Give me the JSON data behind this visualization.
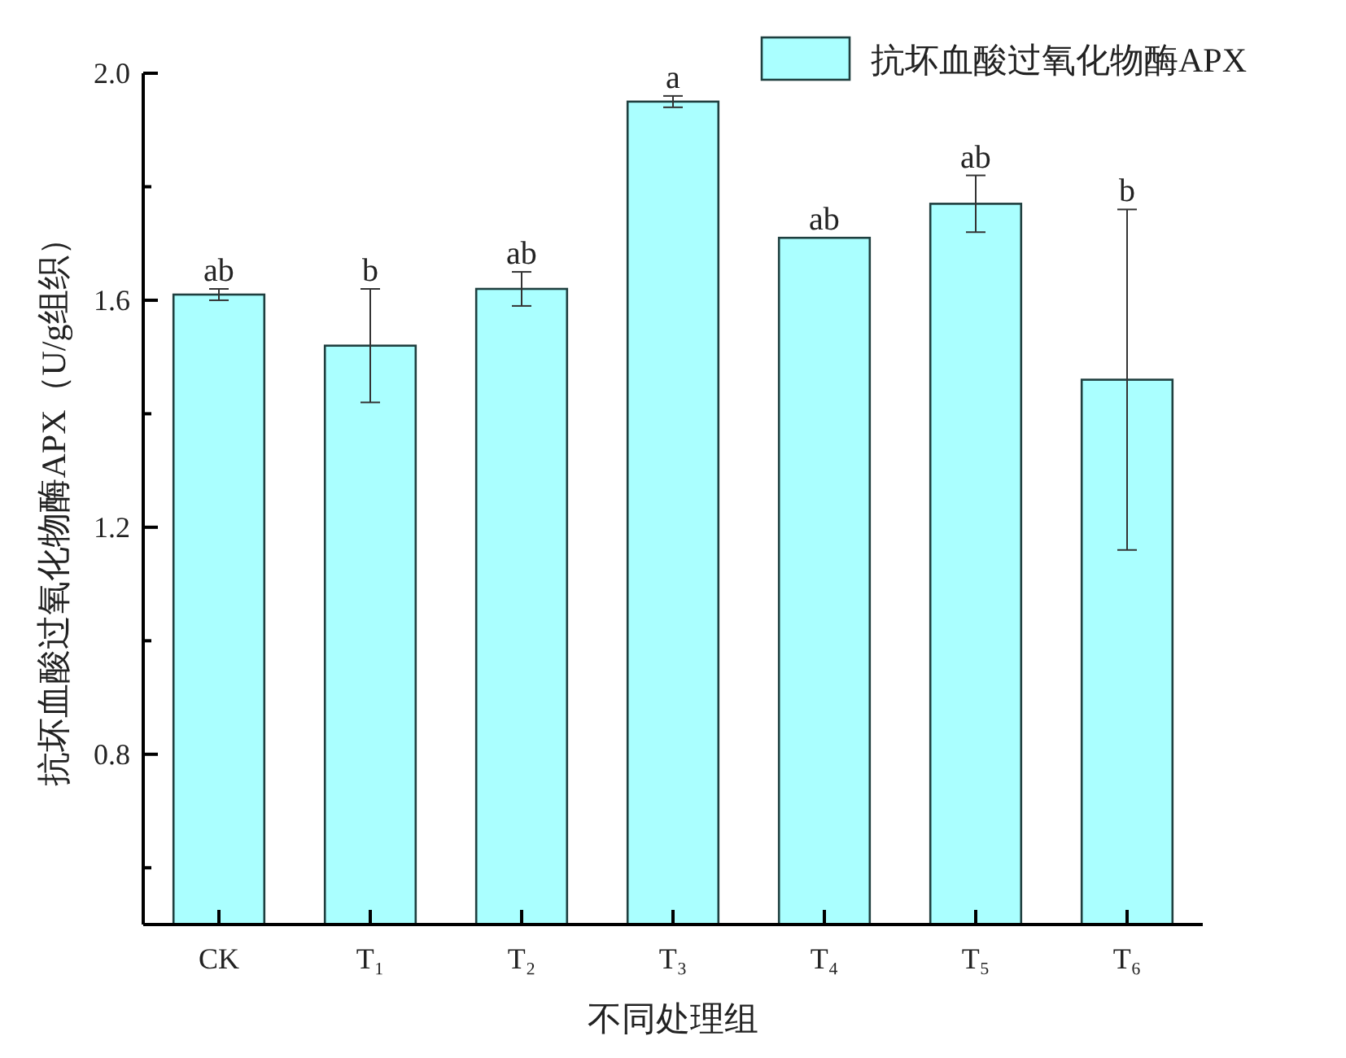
{
  "chart_data": {
    "type": "bar",
    "xlabel": "不同处理组",
    "ylabel": "抗坏血酸过氧化物酶APX（U/g组织）",
    "categories": [
      "CK",
      "T₁",
      "T₂",
      "T₃",
      "T₄",
      "T₅",
      "T₆"
    ],
    "series": [
      {
        "name": "抗坏血酸过氧化物酶APX",
        "color": "#aaffff",
        "values": [
          1.61,
          1.52,
          1.62,
          1.95,
          1.71,
          1.77,
          1.46
        ],
        "errors": [
          0.01,
          0.1,
          0.03,
          0.01,
          null,
          0.05,
          0.3
        ]
      }
    ],
    "ylim": [
      0.5,
      2.0
    ],
    "yticks": [
      {
        "value": 0.6,
        "label": null
      },
      {
        "value": 0.8,
        "label": "0.8"
      },
      {
        "value": 1.0,
        "label": null
      },
      {
        "value": 1.2,
        "label": "1.2"
      },
      {
        "value": 1.4,
        "label": null
      },
      {
        "value": 1.6,
        "label": "1.6"
      },
      {
        "value": 1.8,
        "label": null
      },
      {
        "value": 2.0,
        "label": "2.0"
      }
    ],
    "annotations": [
      {
        "text": "ab",
        "x": "CK",
        "y": 1.62
      },
      {
        "text": "b",
        "x": "T₁",
        "y": 1.62
      },
      {
        "text": "ab",
        "x": "T₂",
        "y": 1.65
      },
      {
        "text": "a",
        "x": "T₃",
        "y": 1.96
      },
      {
        "text": "ab",
        "x": "T₄",
        "y": 1.71
      },
      {
        "text": "ab",
        "x": "T₅",
        "y": 1.82
      },
      {
        "text": "b",
        "x": "T₆",
        "y": 1.76
      }
    ],
    "legend": "top right",
    "grid": false
  }
}
